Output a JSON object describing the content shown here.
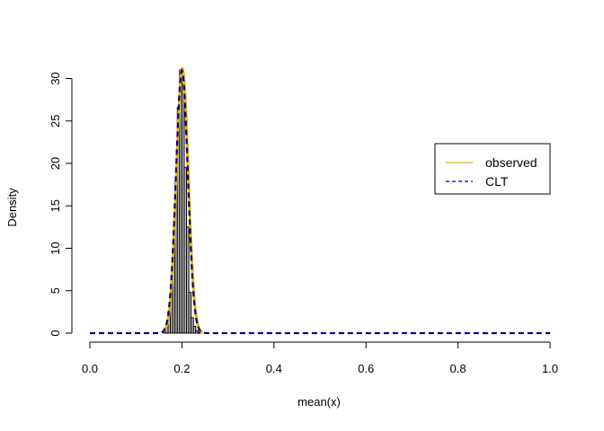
{
  "chart_data": {
    "type": "histogram",
    "title": "",
    "xlabel": "mean(x)",
    "ylabel": "Density",
    "xlim": [
      0,
      1
    ],
    "ylim": [
      0,
      31
    ],
    "x_ticks": [
      0.0,
      0.2,
      0.4,
      0.6,
      0.8,
      1.0
    ],
    "x_tick_labels": [
      "0.0",
      "0.2",
      "0.4",
      "0.6",
      "0.8",
      "1.0"
    ],
    "y_ticks": [
      0,
      5,
      10,
      15,
      20,
      25,
      30
    ],
    "y_tick_labels": [
      "0",
      "5",
      "10",
      "15",
      "20",
      "25",
      "30"
    ],
    "grid": false,
    "histogram": {
      "bin_width": 0.005,
      "bin_starts": [
        0.16,
        0.165,
        0.17,
        0.175,
        0.18,
        0.185,
        0.19,
        0.195,
        0.2,
        0.205,
        0.21,
        0.215,
        0.22,
        0.225,
        0.23,
        0.235,
        0.24
      ],
      "density": [
        0.2,
        1.0,
        2.2,
        4.9,
        9.8,
        17.8,
        26.6,
        31.0,
        29.4,
        19.5,
        12.5,
        4.8,
        1.8,
        0.8,
        0.3,
        0.1,
        0.0
      ],
      "fill": "#bebebe",
      "edge": "#000000"
    },
    "series": [
      {
        "name": "observed",
        "kind": "density",
        "mean": 0.201,
        "sd": 0.0128,
        "color": "#e6b800",
        "dash": "solid"
      },
      {
        "name": "CLT",
        "kind": "normal",
        "mean": 0.2,
        "sd": 0.0129,
        "color": "#00008b",
        "dash": "dashed"
      }
    ],
    "legend": {
      "position": "right",
      "entries": [
        "observed",
        "CLT"
      ]
    }
  }
}
